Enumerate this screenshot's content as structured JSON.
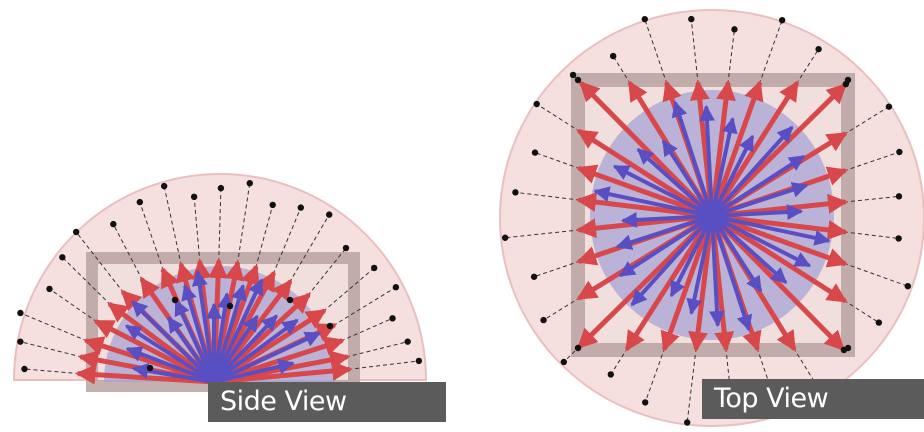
{
  "labels": {
    "side_view": "Side View",
    "top_view": "Top View"
  },
  "colors": {
    "outer_sphere_fill": "#f6dcdc",
    "outer_sphere_stroke": "#e8b9b9",
    "inner_sphere_fill": "#a9a3d6",
    "box_frame": "#b9a4a2",
    "red_arrow": "#d8474a",
    "blue_arrow": "#5a4fc2",
    "dot": "#111111",
    "dashed_line": "#333333",
    "label_background": "#5b5b5b",
    "label_text": "#ffffff"
  }
}
